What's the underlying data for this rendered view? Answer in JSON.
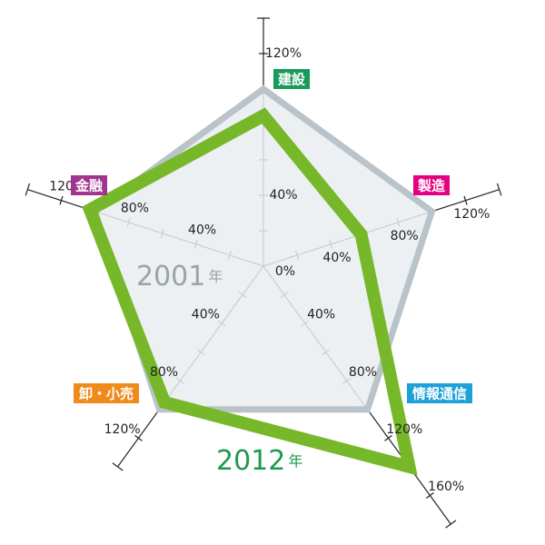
{
  "chart_data": {
    "type": "radar",
    "categories": [
      "建設",
      "製造",
      "情報通信",
      "卸・小売",
      "金融"
    ],
    "category_colors": [
      "#1a9a5a",
      "#e4007f",
      "#1ea0d8",
      "#f08a1c",
      "#a0348e"
    ],
    "axes": [
      {
        "rlim": [
          0,
          140
        ],
        "ticks": [
          {
            "value": 40,
            "label": "40%"
          },
          {
            "value": 120,
            "label": "120%"
          }
        ]
      },
      {
        "rlim": [
          0,
          140
        ],
        "ticks": [
          {
            "value": 40,
            "label": "40%"
          },
          {
            "value": 80,
            "label": "80%"
          },
          {
            "value": 120,
            "label": "120%"
          }
        ]
      },
      {
        "rlim": [
          0,
          180
        ],
        "ticks": [
          {
            "value": 40,
            "label": "40%"
          },
          {
            "value": 80,
            "label": "80%"
          },
          {
            "value": 120,
            "label": "120%"
          },
          {
            "value": 160,
            "label": "160%"
          }
        ]
      },
      {
        "rlim": [
          0,
          140
        ],
        "ticks": [
          {
            "value": 40,
            "label": "40%"
          },
          {
            "value": 80,
            "label": "80%"
          },
          {
            "value": 120,
            "label": "120%"
          }
        ]
      },
      {
        "rlim": [
          0,
          140
        ],
        "ticks": [
          {
            "value": 40,
            "label": "40%"
          },
          {
            "value": 80,
            "label": "80%"
          },
          {
            "value": 120,
            "label": "120%"
          }
        ]
      }
    ],
    "minor_ticks": [
      20,
      60,
      100,
      140
    ],
    "center_tick": {
      "value": 0,
      "label": "0%"
    },
    "series": [
      {
        "name": "2001年",
        "color": "#b9c3c9",
        "fill": "#e9edf0",
        "values": [
          100,
          100,
          100,
          100,
          100
        ]
      },
      {
        "name": "2012年",
        "color": "#76b82a",
        "values": [
          85,
          58,
          140,
          95,
          103
        ]
      }
    ]
  }
}
